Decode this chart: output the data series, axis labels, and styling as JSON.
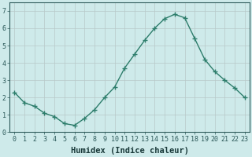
{
  "xlabel": "Humidex (Indice chaleur)",
  "x_values": [
    0,
    1,
    2,
    3,
    4,
    5,
    6,
    7,
    8,
    9,
    10,
    11,
    12,
    13,
    14,
    15,
    16,
    17,
    18,
    19,
    20,
    21,
    22,
    23
  ],
  "y_values": [
    2.3,
    1.7,
    1.5,
    1.1,
    0.9,
    0.5,
    0.4,
    0.8,
    1.3,
    2.0,
    2.6,
    3.7,
    4.5,
    5.3,
    6.0,
    6.55,
    6.8,
    6.6,
    5.4,
    4.2,
    3.5,
    3.0,
    2.55,
    2.0
  ],
  "line_color": "#2d7d6b",
  "marker": "+",
  "marker_size": 4,
  "marker_linewidth": 1.0,
  "bg_color": "#ceeaea",
  "grid_color": "#b8c8c8",
  "grid_linewidth": 0.5,
  "ylim": [
    0,
    7.5
  ],
  "xlim": [
    -0.5,
    23.5
  ],
  "yticks": [
    0,
    1,
    2,
    3,
    4,
    5,
    6,
    7
  ],
  "xticks": [
    0,
    1,
    2,
    3,
    4,
    5,
    6,
    7,
    8,
    9,
    10,
    11,
    12,
    13,
    14,
    15,
    16,
    17,
    18,
    19,
    20,
    21,
    22,
    23
  ],
  "tick_fontsize": 6.0,
  "xlabel_fontsize": 7.5,
  "linewidth": 1.0,
  "spine_color": "#2d7d6b"
}
